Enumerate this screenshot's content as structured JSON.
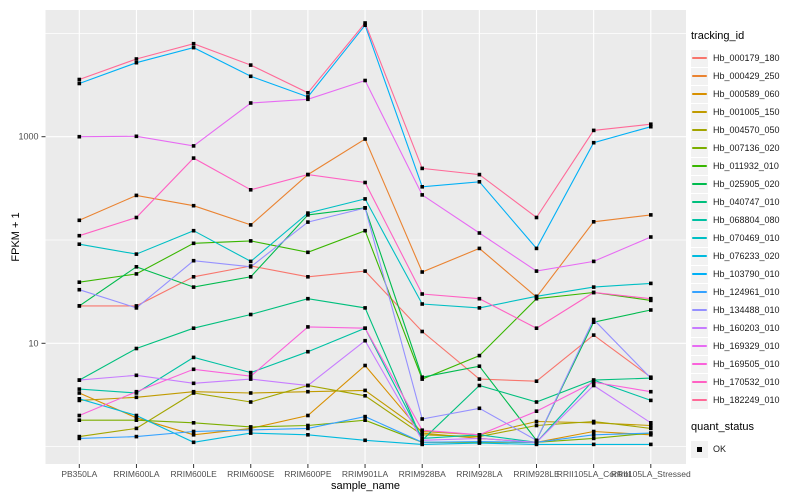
{
  "legend": {
    "tracking_title": "tracking_id",
    "quant_title": "quant_status",
    "quant_items": [
      {
        "label": "OK"
      }
    ]
  },
  "chart_data": {
    "type": "line",
    "title": "",
    "xlabel": "sample_name",
    "ylabel": "FPKM + 1",
    "y_scale": "log10",
    "panel_bg": "#EBEBEB",
    "grid_color": "#FFFFFF",
    "point_color": "#000000",
    "legend_key_bg": "#F2F2F2",
    "y_ticks": [
      {
        "label": "1000",
        "value": 1000
      },
      {
        "label": "10",
        "value": 10
      }
    ],
    "y_major_breaks": [
      10,
      1000
    ],
    "y_minor_breaks": [
      1,
      100,
      10000
    ],
    "ylim_log": [
      0.8,
      16000
    ],
    "categories": [
      "PB350LA",
      "RRIM600LA",
      "RRIM600LE",
      "RRIM600SE",
      "RRIM600PE",
      "RRIM901LA",
      "RRIM928BA",
      "RRIM928LA",
      "RRIM928LE",
      "RRII105LA_Control",
      "RRII105LA_Stressed"
    ],
    "series": [
      {
        "name": "Hb_000179_180",
        "color": "#F8766D",
        "values": [
          23,
          23,
          44,
          56,
          44,
          50,
          13,
          4.5,
          4.3,
          12,
          4.7
        ]
      },
      {
        "name": "Hb_000429_250",
        "color": "#EA8331",
        "values": [
          155,
          270,
          215,
          140,
          430,
          950,
          49,
          83,
          28,
          150,
          175
        ]
      },
      {
        "name": "Hb_000589_060",
        "color": "#D89000",
        "values": [
          3.3,
          1.9,
          1.3,
          1.5,
          2.0,
          6.1,
          1.35,
          1.2,
          1.1,
          1.4,
          1.3
        ]
      },
      {
        "name": "Hb_001005_150",
        "color": "#C09B00",
        "values": [
          2.8,
          3.0,
          3.4,
          3.3,
          3.4,
          3.5,
          1.4,
          1.3,
          1.75,
          1.7,
          1.6
        ]
      },
      {
        "name": "Hb_004570_050",
        "color": "#A3A500",
        "values": [
          1.25,
          1.5,
          3.3,
          2.7,
          3.9,
          3.1,
          1.3,
          1.25,
          1.6,
          1.75,
          1.5
        ]
      },
      {
        "name": "Hb_007136_020",
        "color": "#7CAE00",
        "values": [
          1.8,
          1.8,
          1.7,
          1.55,
          1.6,
          1.8,
          1.1,
          1.1,
          1.1,
          1.2,
          1.35
        ]
      },
      {
        "name": "Hb_011932_010",
        "color": "#39B600",
        "values": [
          39,
          47,
          93,
          98,
          76,
          123,
          4.5,
          7.6,
          27,
          31,
          26
        ]
      },
      {
        "name": "Hb_025905_020",
        "color": "#00BB4E",
        "values": [
          23,
          55,
          35,
          44,
          175,
          205,
          4.7,
          6.0,
          1.15,
          16,
          21
        ]
      },
      {
        "name": "Hb_040747_010",
        "color": "#00BF7D",
        "values": [
          4.4,
          8.9,
          14,
          19,
          27,
          22,
          1.15,
          3.9,
          2.7,
          4.4,
          4.6
        ]
      },
      {
        "name": "Hb_068804_080",
        "color": "#00C1A3",
        "values": [
          3.6,
          3.3,
          7.3,
          5.2,
          8.3,
          14,
          1.2,
          1.3,
          1.1,
          4.4,
          2.8
        ]
      },
      {
        "name": "Hb_070469_010",
        "color": "#00BFC4",
        "values": [
          91,
          73,
          123,
          62,
          182,
          250,
          24,
          22,
          28.5,
          35,
          38
        ]
      },
      {
        "name": "Hb_076233_020",
        "color": "#00BADE",
        "values": [
          2.9,
          2.0,
          1.1,
          1.35,
          1.3,
          1.15,
          1.05,
          1.08,
          1.05,
          1.05,
          1.05
        ]
      },
      {
        "name": "Hb_103790_010",
        "color": "#00B0F6",
        "values": [
          3270,
          5200,
          7280,
          3840,
          2430,
          12000,
          327,
          366,
          83,
          875,
          1250
        ]
      },
      {
        "name": "Hb_124961_010",
        "color": "#35A2FF",
        "values": [
          1.2,
          1.25,
          1.4,
          1.45,
          1.5,
          1.95,
          1.1,
          1.12,
          1.1,
          1.3,
          1.35
        ]
      },
      {
        "name": "Hb_134488_010",
        "color": "#9590FF",
        "values": [
          33,
          22,
          63,
          55,
          149,
          204,
          1.85,
          2.35,
          1.15,
          17,
          4.6
        ]
      },
      {
        "name": "Hb_160203_010",
        "color": "#C77CFF",
        "values": [
          4.4,
          4.9,
          4.1,
          4.5,
          3.9,
          10.6,
          1.15,
          1.2,
          1.1,
          3.9,
          1.7
        ]
      },
      {
        "name": "Hb_169329_010",
        "color": "#E76BF3",
        "values": [
          1000,
          1010,
          815,
          2120,
          2300,
          3500,
          273,
          117,
          50,
          62,
          107
        ]
      },
      {
        "name": "Hb_169505_010",
        "color": "#FA62DB",
        "values": [
          2.0,
          3.4,
          5.6,
          4.8,
          14.4,
          14,
          1.44,
          1.3,
          2.2,
          4.2,
          3.4
        ]
      },
      {
        "name": "Hb_170532_010",
        "color": "#FF61C3",
        "values": [
          110,
          165,
          620,
          306,
          430,
          360,
          30,
          27,
          14,
          31,
          27
        ]
      },
      {
        "name": "Hb_182249_010",
        "color": "#FF6A98",
        "values": [
          3580,
          5650,
          7950,
          4930,
          2660,
          12600,
          493,
          430,
          165,
          1150,
          1320
        ]
      }
    ]
  }
}
